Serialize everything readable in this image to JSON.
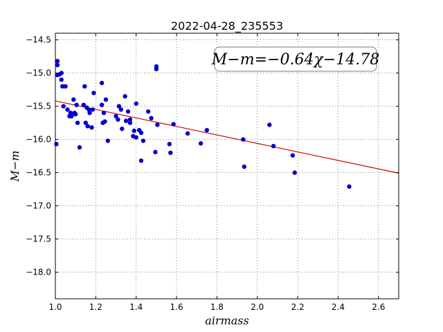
{
  "chart_data": {
    "type": "scatter",
    "title": "2022-04-28_235553",
    "xlabel": "airmass",
    "ylabel": "M−m",
    "annotation": "M−m=−0.64χ−14.78",
    "xlim": [
      1.0,
      2.7
    ],
    "ylim": [
      -18.4,
      -14.4
    ],
    "xticks": [
      1.0,
      1.2,
      1.4,
      1.6,
      1.8,
      2.0,
      2.2,
      2.4,
      2.6
    ],
    "xtick_labels": [
      "1.0",
      "1.2",
      "1.4",
      "1.6",
      "1.8",
      "2.0",
      "2.2",
      "2.4",
      "2.6"
    ],
    "yticks": [
      -14.5,
      -15.0,
      -15.5,
      -16.0,
      -16.5,
      -17.0,
      -17.5,
      -18.0
    ],
    "ytick_labels": [
      "−14.5",
      "−15.0",
      "−15.5",
      "−16.0",
      "−16.5",
      "−17.0",
      "−17.5",
      "−18.0"
    ],
    "grid": true,
    "point_color": "#0000cc",
    "fit_color": "#cc0000",
    "fit": {
      "slope": -0.64,
      "intercept": -14.78
    },
    "points": [
      [
        1.005,
        -16.07
      ],
      [
        1.01,
        -14.82
      ],
      [
        1.01,
        -14.88
      ],
      [
        1.01,
        -15.03
      ],
      [
        1.02,
        -15.02
      ],
      [
        1.03,
        -15.0
      ],
      [
        1.03,
        -15.1
      ],
      [
        1.035,
        -15.2
      ],
      [
        1.04,
        -15.5
      ],
      [
        1.05,
        -15.2
      ],
      [
        1.06,
        -15.55
      ],
      [
        1.07,
        -15.65
      ],
      [
        1.075,
        -15.6
      ],
      [
        1.08,
        -15.65
      ],
      [
        1.09,
        -15.4
      ],
      [
        1.095,
        -15.6
      ],
      [
        1.1,
        -15.62
      ],
      [
        1.105,
        -15.48
      ],
      [
        1.11,
        -15.75
      ],
      [
        1.12,
        -16.12
      ],
      [
        1.14,
        -15.48
      ],
      [
        1.145,
        -15.2
      ],
      [
        1.15,
        -15.75
      ],
      [
        1.155,
        -15.52
      ],
      [
        1.16,
        -15.8
      ],
      [
        1.165,
        -15.55
      ],
      [
        1.17,
        -15.6
      ],
      [
        1.18,
        -15.82
      ],
      [
        1.185,
        -15.55
      ],
      [
        1.19,
        -15.3
      ],
      [
        1.23,
        -15.15
      ],
      [
        1.23,
        -15.48
      ],
      [
        1.235,
        -15.75
      ],
      [
        1.24,
        -15.6
      ],
      [
        1.245,
        -15.73
      ],
      [
        1.25,
        -15.4
      ],
      [
        1.26,
        -16.02
      ],
      [
        1.3,
        -15.65
      ],
      [
        1.31,
        -15.7
      ],
      [
        1.315,
        -15.5
      ],
      [
        1.325,
        -15.55
      ],
      [
        1.33,
        -15.84
      ],
      [
        1.345,
        -15.35
      ],
      [
        1.35,
        -15.72
      ],
      [
        1.36,
        -15.58
      ],
      [
        1.37,
        -15.75
      ],
      [
        1.37,
        -15.7
      ],
      [
        1.385,
        -15.95
      ],
      [
        1.39,
        -15.87
      ],
      [
        1.4,
        -15.46
      ],
      [
        1.4,
        -15.97
      ],
      [
        1.415,
        -15.86
      ],
      [
        1.425,
        -15.9
      ],
      [
        1.425,
        -16.32
      ],
      [
        1.435,
        -16.02
      ],
      [
        1.46,
        -15.58
      ],
      [
        1.475,
        -15.68
      ],
      [
        1.495,
        -16.19
      ],
      [
        1.5,
        -14.9
      ],
      [
        1.5,
        -14.94
      ],
      [
        1.505,
        -15.78
      ],
      [
        1.565,
        -16.07
      ],
      [
        1.57,
        -16.2
      ],
      [
        1.585,
        -15.77
      ],
      [
        1.655,
        -15.91
      ],
      [
        1.72,
        -16.06
      ],
      [
        1.75,
        -15.86
      ],
      [
        1.93,
        -16.0
      ],
      [
        1.935,
        -16.41
      ],
      [
        2.06,
        -15.78
      ],
      [
        2.08,
        -16.1
      ],
      [
        2.175,
        -16.24
      ],
      [
        2.185,
        -16.5
      ],
      [
        2.455,
        -16.71
      ]
    ]
  }
}
